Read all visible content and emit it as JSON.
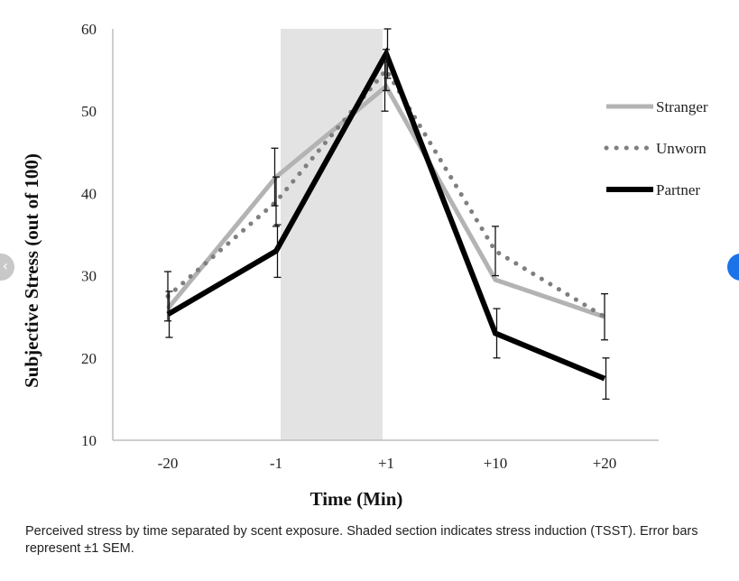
{
  "chart_data": {
    "type": "line",
    "xlabel": "Time (Min)",
    "ylabel": "Subjective Stress (out of 100)",
    "categories": [
      "-20",
      "-1",
      "+1",
      "+10",
      "+20"
    ],
    "ylim": [
      10,
      60
    ],
    "yticks": [
      10,
      20,
      30,
      40,
      50,
      60
    ],
    "shaded_region": {
      "from": "-1",
      "to": "+1"
    },
    "legend_placement": "right",
    "series": [
      {
        "name": "Stranger",
        "style": "solid-gray",
        "color": "#b3b3b3",
        "values": [
          26,
          42,
          53,
          29.5,
          25
        ],
        "errors": [
          0,
          3.5,
          3,
          0,
          0
        ]
      },
      {
        "name": "Unworn",
        "style": "dotted-gray",
        "color": "#7f7f7f",
        "values": [
          27.5,
          39,
          55,
          33,
          25
        ],
        "errors": [
          3,
          3,
          2.5,
          3,
          2.8
        ]
      },
      {
        "name": "Partner",
        "style": "solid-black",
        "color": "#000000",
        "values": [
          25.3,
          33,
          57,
          23,
          17.5
        ],
        "errors": [
          2.8,
          3.2,
          3,
          3,
          2.5
        ]
      }
    ]
  },
  "caption": "Perceived stress by time separated by scent exposure. Shaded section indicates stress induction (TSST). Error bars represent ±1 SEM."
}
